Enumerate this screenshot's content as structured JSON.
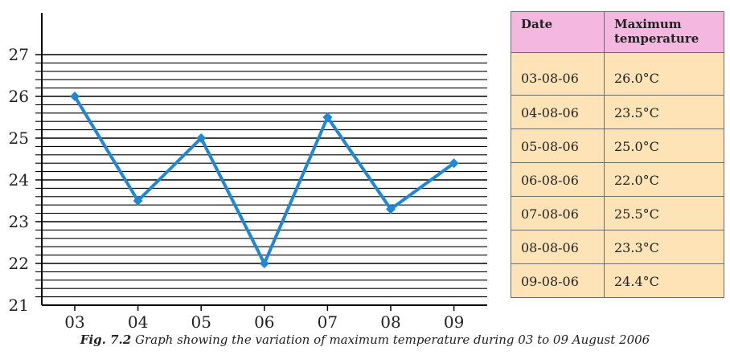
{
  "chart_data": {
    "type": "line",
    "title": "",
    "xlabel": "",
    "ylabel": "",
    "categories": [
      "03",
      "04",
      "05",
      "06",
      "07",
      "08",
      "09"
    ],
    "values": [
      26.0,
      23.5,
      25.0,
      22.0,
      25.5,
      23.3,
      24.4
    ],
    "ylim": [
      21,
      27
    ],
    "yticks": [
      "21",
      "22",
      "23",
      "24",
      "25",
      "26",
      "27"
    ],
    "grid": true,
    "series_color": "#1f88d6",
    "marker": "diamond"
  },
  "table": {
    "headers": [
      "Date",
      "Maximum temperature"
    ],
    "rows": [
      [
        "03-08-06",
        "26.0°C"
      ],
      [
        "04-08-06",
        "23.5°C"
      ],
      [
        "05-08-06",
        "25.0°C"
      ],
      [
        "06-08-06",
        "22.0°C"
      ],
      [
        "07-08-06",
        "25.5°C"
      ],
      [
        "08-08-06",
        "23.3°C"
      ],
      [
        "09-08-06",
        "24.4°C"
      ]
    ],
    "header_color": "#f4b8e0",
    "cell_color": "#fde3b6"
  },
  "caption": {
    "label": "Fig. 7.2",
    "text": "Graph showing the variation of maximum temperature during 03 to 09 August 2006"
  }
}
